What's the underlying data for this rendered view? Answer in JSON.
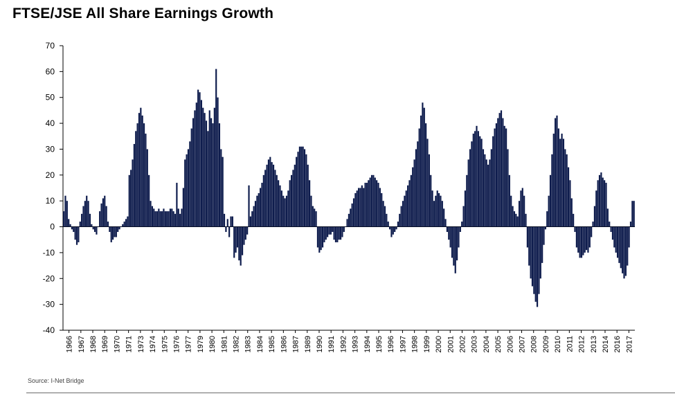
{
  "title": "FTSE/JSE All Share Earnings Growth",
  "source": "Source: I-Net Bridge",
  "colors": {
    "bars": "#0d1b4c",
    "axis": "#000000",
    "rule": "#6b6b6b"
  },
  "chart_data": {
    "type": "bar",
    "title": "FTSE/JSE All Share Earnings Growth",
    "xlabel": "",
    "ylabel": "",
    "ylim": [
      -40,
      70
    ],
    "yticks": [
      -40,
      -30,
      -20,
      -10,
      0,
      10,
      20,
      30,
      40,
      50,
      60,
      70
    ],
    "grid": false,
    "legend": "none",
    "x_tick_labels": [
      "1966",
      "1967",
      "1968",
      "1969",
      "1970",
      "1971",
      "1973",
      "1974",
      "1975",
      "1976",
      "1977",
      "1979",
      "1980",
      "1981",
      "1982",
      "1983",
      "1984",
      "1985",
      "1986",
      "1987",
      "1989",
      "1990",
      "1991",
      "1992",
      "1993",
      "1994",
      "1995",
      "1996",
      "1997",
      "1998",
      "1999",
      "2000",
      "2001",
      "2002",
      "2003",
      "2004",
      "2005",
      "2006",
      "2007",
      "2008",
      "2009",
      "2010",
      "2011",
      "2012",
      "2013",
      "2014",
      "2016",
      "2017"
    ],
    "series": [
      {
        "values": [
          6,
          12,
          10,
          3,
          1,
          -1,
          -2,
          -5,
          -7,
          -6,
          2,
          5,
          8,
          10,
          12,
          10,
          5,
          1,
          -1,
          -2,
          -3,
          0,
          6,
          9,
          11,
          12,
          8,
          2,
          -2,
          -6,
          -5,
          -4,
          -4,
          -2,
          -1,
          0,
          1,
          2,
          3,
          4,
          20,
          22,
          26,
          32,
          37,
          40,
          44,
          46,
          43,
          40,
          36,
          30,
          20,
          10,
          8,
          7,
          6,
          6,
          7,
          6,
          6,
          7,
          6,
          6,
          6,
          7,
          7,
          6,
          5,
          17,
          7,
          5,
          7,
          15,
          26,
          28,
          30,
          33,
          38,
          42,
          45,
          48,
          53,
          52,
          49,
          46,
          44,
          41,
          37,
          45,
          42,
          40,
          46,
          61,
          50,
          40,
          30,
          27,
          5,
          -2,
          3,
          -4,
          4,
          4,
          -12,
          -10,
          -8,
          -13,
          -15,
          -11,
          -7,
          -5,
          -3,
          16,
          4,
          6,
          8,
          10,
          12,
          13,
          15,
          17,
          20,
          22,
          24,
          26,
          27,
          25,
          24,
          22,
          20,
          18,
          16,
          14,
          12,
          11,
          12,
          14,
          18,
          20,
          22,
          24,
          27,
          29,
          31,
          31,
          31,
          30,
          28,
          24,
          18,
          12,
          8,
          7,
          6,
          -8,
          -10,
          -9,
          -8,
          -6,
          -5,
          -4,
          -3,
          -3,
          -2,
          -5,
          -6,
          -6,
          -5,
          -5,
          -4,
          -2,
          0,
          3,
          5,
          7,
          9,
          11,
          13,
          14,
          15,
          15,
          16,
          15,
          17,
          17,
          18,
          19,
          20,
          20,
          19,
          18,
          17,
          15,
          13,
          10,
          8,
          5,
          2,
          -1,
          -4,
          -3,
          -2,
          -1,
          2,
          5,
          8,
          10,
          12,
          14,
          16,
          18,
          20,
          23,
          26,
          30,
          33,
          38,
          43,
          48,
          46,
          40,
          34,
          28,
          20,
          14,
          10,
          12,
          14,
          13,
          12,
          10,
          7,
          3,
          -2,
          -5,
          -8,
          -12,
          -15,
          -18,
          -13,
          -8,
          -2,
          2,
          8,
          14,
          20,
          26,
          30,
          33,
          36,
          37,
          39,
          37,
          35,
          34,
          30,
          28,
          26,
          24,
          26,
          30,
          35,
          38,
          40,
          42,
          44,
          45,
          42,
          39,
          38,
          30,
          20,
          12,
          8,
          6,
          5,
          4,
          10,
          14,
          15,
          12,
          5,
          -8,
          -15,
          -20,
          -23,
          -26,
          -29,
          -31,
          -26,
          -20,
          -14,
          -7,
          -1,
          6,
          12,
          20,
          28,
          36,
          42,
          43,
          38,
          34,
          36,
          34,
          30,
          28,
          23,
          18,
          11,
          5,
          -2,
          -8,
          -10,
          -12,
          -12,
          -11,
          -10,
          -9,
          -10,
          -8,
          -4,
          2,
          8,
          14,
          18,
          20,
          21,
          19,
          18,
          17,
          7,
          2,
          -2,
          -5,
          -8,
          -10,
          -12,
          -14,
          -16,
          -18,
          -20,
          -19,
          -15,
          -8,
          2,
          10,
          10
        ]
      }
    ]
  }
}
